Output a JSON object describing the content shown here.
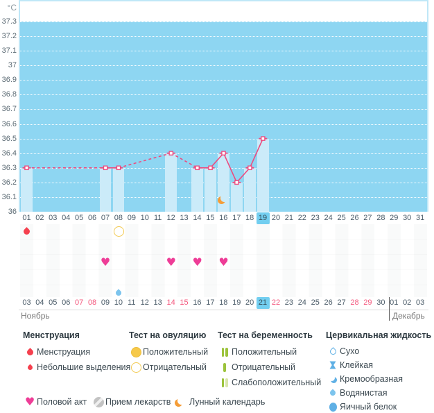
{
  "unit_label": "°C",
  "chart_data": {
    "type": "line",
    "ylabel": "°C",
    "ylim": [
      36,
      37.3
    ],
    "y_ticks": [
      "37.3",
      "37.2",
      "37.1",
      "37",
      "36.9",
      "36.8",
      "36.7",
      "36.6",
      "36.5",
      "36.4",
      "36.3",
      "36.2",
      "36.1",
      "36"
    ],
    "grid": "horizontal-dotted",
    "series": [
      {
        "name": "basal-temperature",
        "points": [
          {
            "day": 1,
            "temp": 36.3
          },
          {
            "day": 7,
            "temp": 36.3
          },
          {
            "day": 8,
            "temp": 36.3
          },
          {
            "day": 12,
            "temp": 36.4
          },
          {
            "day": 14,
            "temp": 36.3
          },
          {
            "day": 15,
            "temp": 36.3
          },
          {
            "day": 16,
            "temp": 36.4
          },
          {
            "day": 17,
            "temp": 36.2
          },
          {
            "day": 18,
            "temp": 36.3
          },
          {
            "day": 19,
            "temp": 36.5
          }
        ],
        "gap_style": "dashed",
        "bars_under_points": true
      }
    ],
    "lunar_calendar_day": 16,
    "x_days_total": 31,
    "highlighted_cycle_day": "19"
  },
  "day_row": {
    "days": [
      "01",
      "02",
      "03",
      "04",
      "05",
      "06",
      "07",
      "08",
      "09",
      "10",
      "11",
      "12",
      "13",
      "14",
      "15",
      "16",
      "17",
      "18",
      "19",
      "20",
      "21",
      "22",
      "23",
      "24",
      "25",
      "26",
      "27",
      "28",
      "29",
      "30",
      "31"
    ],
    "current": "19"
  },
  "event_grid": {
    "rows": [
      {
        "name": "row-menstruation-ovulation",
        "placements": [
          {
            "day": 1,
            "icon": "menstruation-drop"
          },
          {
            "day": 8,
            "icon": "ovulation-negative"
          }
        ]
      },
      {
        "name": "row-2",
        "placements": []
      },
      {
        "name": "row-intercourse",
        "placements": [
          {
            "day": 7,
            "icon": "intercourse-heart"
          },
          {
            "day": 12,
            "icon": "intercourse-heart"
          },
          {
            "day": 14,
            "icon": "intercourse-heart"
          },
          {
            "day": 16,
            "icon": "intercourse-heart"
          }
        ]
      },
      {
        "name": "row-4",
        "placements": []
      },
      {
        "name": "row-cervical-fluid",
        "placements": [
          {
            "day": 8,
            "icon": "fluid-watery"
          }
        ]
      }
    ]
  },
  "date_row": {
    "dates": [
      {
        "label": "03",
        "weekend": false,
        "current": false
      },
      {
        "label": "04",
        "weekend": false,
        "current": false
      },
      {
        "label": "05",
        "weekend": false,
        "current": false
      },
      {
        "label": "06",
        "weekend": false,
        "current": false
      },
      {
        "label": "07",
        "weekend": true,
        "current": false
      },
      {
        "label": "08",
        "weekend": true,
        "current": false
      },
      {
        "label": "09",
        "weekend": false,
        "current": false
      },
      {
        "label": "10",
        "weekend": false,
        "current": false
      },
      {
        "label": "11",
        "weekend": false,
        "current": false
      },
      {
        "label": "12",
        "weekend": false,
        "current": false
      },
      {
        "label": "13",
        "weekend": false,
        "current": false
      },
      {
        "label": "14",
        "weekend": true,
        "current": false
      },
      {
        "label": "15",
        "weekend": true,
        "current": false
      },
      {
        "label": "16",
        "weekend": false,
        "current": false
      },
      {
        "label": "17",
        "weekend": false,
        "current": false
      },
      {
        "label": "18",
        "weekend": false,
        "current": false
      },
      {
        "label": "19",
        "weekend": false,
        "current": false
      },
      {
        "label": "20",
        "weekend": false,
        "current": false
      },
      {
        "label": "21",
        "weekend": true,
        "current": true
      },
      {
        "label": "22",
        "weekend": true,
        "current": false
      },
      {
        "label": "23",
        "weekend": false,
        "current": false
      },
      {
        "label": "24",
        "weekend": false,
        "current": false
      },
      {
        "label": "25",
        "weekend": false,
        "current": false
      },
      {
        "label": "26",
        "weekend": false,
        "current": false
      },
      {
        "label": "27",
        "weekend": false,
        "current": false
      },
      {
        "label": "28",
        "weekend": true,
        "current": false
      },
      {
        "label": "29",
        "weekend": true,
        "current": false
      },
      {
        "label": "30",
        "weekend": false,
        "current": false
      },
      {
        "label": "01",
        "weekend": false,
        "current": false
      },
      {
        "label": "02",
        "weekend": false,
        "current": false
      },
      {
        "label": "03",
        "weekend": false,
        "current": false
      }
    ],
    "month_divider_after_index": 27
  },
  "months": {
    "left": "Ноябрь",
    "right": "Декабрь"
  },
  "legend": {
    "groups": [
      {
        "title": "Менструация",
        "items": [
          {
            "icon": "menstruation-drop",
            "label": "Менструация"
          },
          {
            "icon": "spotting-drop",
            "label": "Небольшие выделения"
          }
        ]
      },
      {
        "title": "Тест на овуляцию",
        "items": [
          {
            "icon": "ovulation-positive",
            "label": "Положительный"
          },
          {
            "icon": "ovulation-negative",
            "label": "Отрицательный"
          }
        ]
      },
      {
        "title": "Тест на беременность",
        "items": [
          {
            "icon": "pregnancy-positive",
            "label": "Положительный"
          },
          {
            "icon": "pregnancy-negative",
            "label": "Отрицательный"
          },
          {
            "icon": "pregnancy-weak",
            "label": "Слабоположительный"
          }
        ]
      },
      {
        "title": "Цервикальная жидкость",
        "items": [
          {
            "icon": "fluid-dry",
            "label": "Сухо"
          },
          {
            "icon": "fluid-sticky",
            "label": "Клейкая"
          },
          {
            "icon": "fluid-creamy",
            "label": "Кремообразная"
          },
          {
            "icon": "fluid-watery",
            "label": "Водянистая"
          },
          {
            "icon": "fluid-eggwhite",
            "label": "Яичный белок"
          }
        ]
      }
    ],
    "extra": [
      {
        "icon": "intercourse-heart",
        "label": "Половой акт"
      },
      {
        "icon": "medication-pill",
        "label": "Прием лекарств"
      },
      {
        "icon": "lunar-moon",
        "label": "Лунный календарь"
      }
    ]
  },
  "colors": {
    "plot_background": "#8ed6f2",
    "temp_bar": "#cbebf9",
    "temp_line": "#ed4c7f",
    "day_highlight": "#72cef0",
    "weekend_text": "#f4587e",
    "menstruation_red": "#f5404e",
    "intercourse_pink": "#ee3d97",
    "ovulation_yellow": "#f6c94a",
    "pregnancy_green": "#9cc33c",
    "pregnancy_green_weak": "#d9e6ac",
    "cervical_blue": "#5fb0e5",
    "cervical_blue_light": "#7cc4ed",
    "moon_orange": "#f59d38",
    "plot_edge": "#bfe7f7"
  }
}
